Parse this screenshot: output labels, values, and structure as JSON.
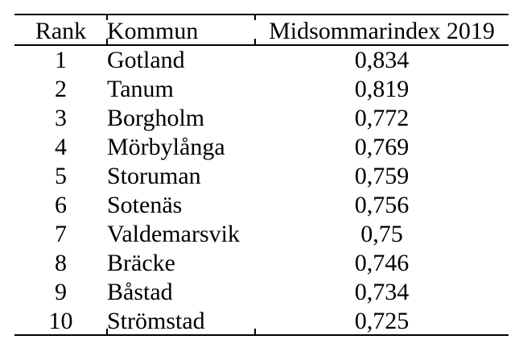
{
  "page": {
    "background_color": "#ffffff",
    "text_color": "#000000",
    "rule_color": "#000000"
  },
  "table": {
    "columns": [
      "Rank",
      "Kommun",
      "Midsommarindex 2019"
    ],
    "rows": [
      {
        "rank": "1",
        "kommun": "Gotland",
        "index": "0,834"
      },
      {
        "rank": "2",
        "kommun": "Tanum",
        "index": "0,819"
      },
      {
        "rank": "3",
        "kommun": "Borgholm",
        "index": "0,772"
      },
      {
        "rank": "4",
        "kommun": "Mörbylånga",
        "index": "0,769"
      },
      {
        "rank": "5",
        "kommun": "Storuman",
        "index": "0,759"
      },
      {
        "rank": "6",
        "kommun": "Sotenäs",
        "index": "0,756"
      },
      {
        "rank": "7",
        "kommun": "Valdemarsvik",
        "index": "0,75"
      },
      {
        "rank": "8",
        "kommun": "Bräcke",
        "index": "0,746"
      },
      {
        "rank": "9",
        "kommun": "Båstad",
        "index": "0,734"
      },
      {
        "rank": "10",
        "kommun": "Strömstad",
        "index": "0,725"
      }
    ]
  },
  "chart_data": {
    "type": "table",
    "columns": [
      "Rank",
      "Kommun",
      "Midsommarindex 2019"
    ],
    "rows": [
      [
        1,
        "Gotland",
        0.834
      ],
      [
        2,
        "Tanum",
        0.819
      ],
      [
        3,
        "Borgholm",
        0.772
      ],
      [
        4,
        "Mörbylånga",
        0.769
      ],
      [
        5,
        "Storuman",
        0.759
      ],
      [
        6,
        "Sotenäs",
        0.756
      ],
      [
        7,
        "Valdemarsvik",
        0.75
      ],
      [
        8,
        "Bräcke",
        0.746
      ],
      [
        9,
        "Båstad",
        0.734
      ],
      [
        10,
        "Strömstad",
        0.725
      ]
    ]
  }
}
